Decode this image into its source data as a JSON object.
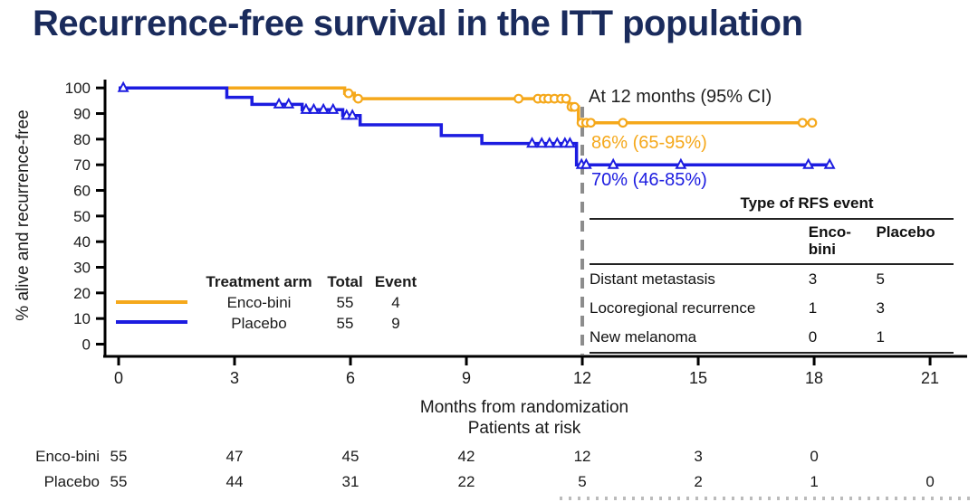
{
  "title": "Recurrence-free survival in the ITT population",
  "colors": {
    "encobini": "#F5Aookup",
    "placebo": "#1C1CE0",
    "title_navy": "#1A2B5C",
    "axis_black": "#1a1a1a",
    "dashed_gray": "#8C8C8C"
  },
  "annotation": {
    "heading": "At 12 months (95% CI)",
    "encobini_value": "86% (65-95%)",
    "placebo_value": "70% (46-85%)"
  },
  "legend": {
    "col_headers": [
      "Treatment arm",
      "Total",
      "Event"
    ],
    "rows": [
      {
        "arm": "Enco-bini",
        "total": "55",
        "event": "4"
      },
      {
        "arm": "Placebo",
        "total": "55",
        "event": "9"
      }
    ]
  },
  "rfs_table": {
    "title": "Type of RFS event",
    "col_headers": [
      "Enco-bini",
      "Placebo"
    ],
    "rows": [
      {
        "label": "Distant metastasis",
        "encobini": "3",
        "placebo": "5"
      },
      {
        "label": "Locoregional recurrence",
        "encobini": "1",
        "placebo": "3"
      },
      {
        "label": "New melanoma",
        "encobini": "0",
        "placebo": "1"
      }
    ]
  },
  "chart_data": {
    "type": "line",
    "subtype": "kaplan-meier-step",
    "title": "Recurrence-free survival in the ITT population",
    "xlabel": "Months from randomization",
    "ylabel": "% alive and recurrence-free",
    "x_ticks": [
      0,
      3,
      6,
      9,
      12,
      15,
      18,
      21
    ],
    "y_ticks": [
      0,
      10,
      20,
      30,
      40,
      50,
      60,
      70,
      80,
      90,
      100
    ],
    "xlim": [
      0,
      21.9
    ],
    "ylim": [
      0,
      100
    ],
    "grid": false,
    "reference_line_month": 12,
    "series": [
      {
        "name": "Enco-bini",
        "color_key": "encobini",
        "marker": "circle",
        "total": 55,
        "events": 4,
        "start_value": 100,
        "steps": [
          [
            5.85,
            97.9
          ],
          [
            6.1,
            95.8
          ],
          [
            11.65,
            92.6
          ],
          [
            11.9,
            86.4
          ]
        ],
        "end_month": 18.0,
        "censor_marks": [
          [
            5.95,
            97.9
          ],
          [
            6.2,
            95.8
          ],
          [
            10.35,
            95.8
          ],
          [
            10.85,
            95.8
          ],
          [
            11.0,
            95.8
          ],
          [
            11.12,
            95.8
          ],
          [
            11.28,
            95.8
          ],
          [
            11.45,
            95.8
          ],
          [
            11.58,
            95.8
          ],
          [
            11.72,
            92.6
          ],
          [
            11.8,
            92.6
          ],
          [
            11.98,
            86.4
          ],
          [
            12.1,
            86.4
          ],
          [
            12.22,
            86.4
          ],
          [
            13.05,
            86.4
          ],
          [
            17.7,
            86.4
          ],
          [
            17.95,
            86.4
          ]
        ],
        "value_at_12_months": "86% (65-95%)"
      },
      {
        "name": "Placebo",
        "color_key": "placebo",
        "marker": "triangle",
        "total": 55,
        "events": 9,
        "start_value": 100,
        "steps": [
          [
            2.8,
            96.3
          ],
          [
            3.45,
            93.6
          ],
          [
            4.75,
            91.5
          ],
          [
            5.8,
            89.2
          ],
          [
            6.25,
            85.6
          ],
          [
            8.35,
            81.4
          ],
          [
            9.4,
            78.3
          ],
          [
            11.85,
            70.0
          ]
        ],
        "end_month": 18.4,
        "censor_marks": [
          [
            0.12,
            100
          ],
          [
            4.15,
            93.6
          ],
          [
            4.4,
            93.6
          ],
          [
            4.85,
            91.5
          ],
          [
            5.05,
            91.5
          ],
          [
            5.3,
            91.5
          ],
          [
            5.55,
            91.5
          ],
          [
            5.9,
            89.2
          ],
          [
            6.05,
            89.2
          ],
          [
            10.7,
            78.3
          ],
          [
            10.95,
            78.3
          ],
          [
            11.15,
            78.3
          ],
          [
            11.35,
            78.3
          ],
          [
            11.55,
            78.3
          ],
          [
            11.68,
            78.3
          ],
          [
            11.98,
            70
          ],
          [
            12.1,
            70
          ],
          [
            12.8,
            70
          ],
          [
            14.55,
            70
          ],
          [
            17.85,
            70
          ],
          [
            18.4,
            70
          ]
        ],
        "value_at_12_months": "70% (46-85%)"
      }
    ],
    "risk_table": {
      "heading": "Patients at risk",
      "rows": [
        {
          "label": "Enco-bini",
          "counts": [
            "55",
            "47",
            "45",
            "42",
            "12",
            "3",
            "0"
          ]
        },
        {
          "label": "Placebo",
          "counts": [
            "55",
            "44",
            "31",
            "22",
            "5",
            "2",
            "1",
            "0"
          ]
        }
      ]
    }
  }
}
